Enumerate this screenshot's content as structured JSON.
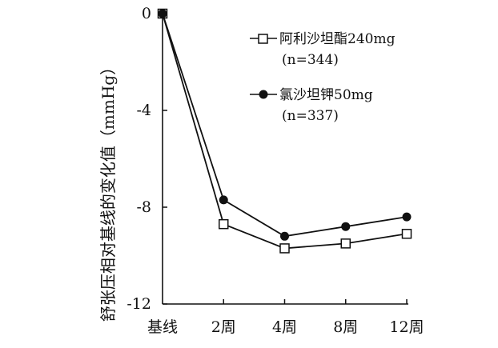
{
  "chart_data": {
    "type": "line",
    "title": "",
    "xlabel": "",
    "ylabel": "舒张压相对基线的变化值（mmHg）",
    "categories": [
      "基线",
      "2周",
      "4周",
      "8周",
      "12周"
    ],
    "ylim": [
      -12,
      0
    ],
    "yticks": [
      0,
      -4,
      -8,
      -12
    ],
    "ytick_labels": [
      "0",
      "-4",
      "-8",
      "-12"
    ],
    "grid": false,
    "legend_position": "top-right",
    "series": [
      {
        "name": "阿利沙坦酯240mg",
        "n_label": "(n=344)",
        "marker": "open-square",
        "color": "#111111",
        "values": [
          0,
          -8.7,
          -9.7,
          -9.5,
          -9.1
        ]
      },
      {
        "name": "氯沙坦钾50mg",
        "n_label": "(n=337)",
        "marker": "filled-circle",
        "color": "#111111",
        "values": [
          0,
          -7.7,
          -9.2,
          -8.8,
          -8.4
        ]
      }
    ]
  }
}
